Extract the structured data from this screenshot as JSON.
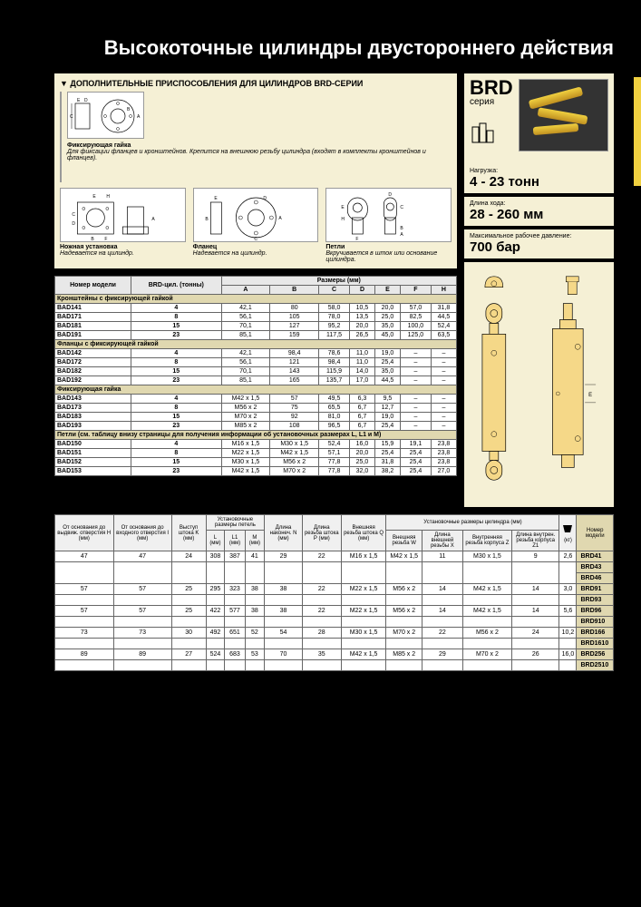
{
  "title": "Высокоточные цилиндры двустороннего действия",
  "accessories": {
    "header": "▼  ДОПОЛНИТЕЛЬНЫЕ ПРИСПОСОБЛЕНИЯ ДЛЯ ЦИЛИНДРОВ BRD-СЕРИИ",
    "nut": {
      "title": "Фиксирующая гайка",
      "desc": "Для фиксации фланцев и кронштейнов. Крепится на внешнюю резьбу цилиндра (входят в комплекты кронштейнов и фланцев)."
    },
    "foot": {
      "title": "Ножная установка",
      "desc": "Надевается на цилиндр."
    },
    "flange": {
      "title": "Фланец",
      "desc": "Надевается на цилиндр."
    },
    "loop": {
      "title": "Петли",
      "desc": "Вкручивается в шток или основание цилиндра."
    }
  },
  "series": {
    "name": "BRD",
    "sub": "серия"
  },
  "specs": {
    "load": {
      "label": "Нагрузка:",
      "value": "4 - 23 тонн"
    },
    "stroke": {
      "label": "Длина хода:",
      "value": "28 - 260 мм"
    },
    "pressure": {
      "label": "Максимальное рабочее давление:",
      "value": "700 бар"
    }
  },
  "table1": {
    "headers": {
      "model": "Номер модели",
      "cyl": "BRD-цил. (тонны)",
      "dims": "Размеры (мм)",
      "cols": [
        "A",
        "B",
        "C",
        "D",
        "E",
        "F",
        "H"
      ]
    },
    "sections": [
      {
        "title": "Кронштейны с фиксирующей гайкой",
        "rows": [
          [
            "BAD141",
            "4",
            "42,1",
            "80",
            "58,0",
            "10,5",
            "20,0",
            "57,0",
            "31,8"
          ],
          [
            "BAD171",
            "8",
            "56,1",
            "105",
            "78,0",
            "13,5",
            "25,0",
            "82,5",
            "44,5"
          ],
          [
            "BAD181",
            "15",
            "70,1",
            "127",
            "95,2",
            "20,0",
            "35,0",
            "100,0",
            "52,4"
          ],
          [
            "BAD191",
            "23",
            "85,1",
            "159",
            "117,5",
            "26,5",
            "45,0",
            "125,0",
            "63,5"
          ]
        ]
      },
      {
        "title": "Фланцы с фиксирующей гайкой",
        "rows": [
          [
            "BAD142",
            "4",
            "42,1",
            "98,4",
            "78,6",
            "11,0",
            "19,0",
            "–",
            "–"
          ],
          [
            "BAD172",
            "8",
            "56,1",
            "121",
            "98,4",
            "11,0",
            "25,4",
            "–",
            "–"
          ],
          [
            "BAD182",
            "15",
            "70,1",
            "143",
            "115,9",
            "14,0",
            "35,0",
            "–",
            "–"
          ],
          [
            "BAD192",
            "23",
            "85,1",
            "165",
            "135,7",
            "17,0",
            "44,5",
            "–",
            "–"
          ]
        ]
      },
      {
        "title": "Фиксирующая гайка",
        "rows": [
          [
            "BAD143",
            "4",
            "M42 x 1,5",
            "57",
            "49,5",
            "6,3",
            "9,5",
            "–",
            "–"
          ],
          [
            "BAD173",
            "8",
            "M56 x 2",
            "75",
            "65,5",
            "6,7",
            "12,7",
            "–",
            "–"
          ],
          [
            "BAD183",
            "15",
            "M70 x 2",
            "92",
            "81,0",
            "6,7",
            "19,0",
            "–",
            "–"
          ],
          [
            "BAD193",
            "23",
            "M85 x 2",
            "108",
            "96,5",
            "6,7",
            "25,4",
            "–",
            "–"
          ]
        ]
      },
      {
        "title": "Петли (см. таблицу внизу страницы для получения информации об установочных размерах L, L1 и M)",
        "rows": [
          [
            "BAD150",
            "4",
            "M16 x 1,5",
            "M30 x 1,5",
            "52,4",
            "16,0",
            "15,9",
            "19,1",
            "23,8"
          ],
          [
            "BAD151",
            "8",
            "M22 x 1,5",
            "M42 x 1,5",
            "57,1",
            "20,0",
            "25,4",
            "25,4",
            "23,8"
          ],
          [
            "BAD152",
            "15",
            "M30 x 1,5",
            "M56 x 2",
            "77,8",
            "25,0",
            "31,8",
            "25,4",
            "23,8"
          ],
          [
            "BAD153",
            "23",
            "M42 x 1,5",
            "M70 x 2",
            "77,8",
            "32,0",
            "38,2",
            "25,4",
            "27,0"
          ]
        ]
      }
    ]
  },
  "table2": {
    "headers": [
      "От основания до выдвиж. отверстия H (мм)",
      "От основания до входного отверстия I (мм)",
      "Выступ штока K (мм)",
      "Установочные размеры петель",
      "Длина наконеч. N (мм)",
      "Длина резьба штока P (мм)",
      "Внешняя резьба штока Q (мм)",
      "Установочные размеры цилиндра (мм)",
      "",
      "Номер модели"
    ],
    "sub1": [
      "L (мм)",
      "L1 (мм)",
      "M (мм)"
    ],
    "sub2": [
      "Внешняя резьба W",
      "Длина внешней резьбы X",
      "Внутренняя резьба корпуса Z",
      "Длина внутрен. резьба корпуса Z1"
    ],
    "weight": "(кг)",
    "groups": [
      {
        "data": [
          "47",
          "47",
          "24",
          "308",
          "387",
          "41",
          "29",
          "22",
          "M16 x 1,5",
          "M42 x 1,5",
          "11",
          "M30 x 1,5",
          "9",
          "2,6"
        ],
        "models": [
          "BRD41",
          "BRD43",
          "BRD46"
        ]
      },
      {
        "data": [
          "57",
          "57",
          "25",
          "295",
          "323",
          "38",
          "38",
          "22",
          "M22 x 1,5",
          "M56 x 2",
          "14",
          "M42 x 1,5",
          "14",
          "3,0"
        ],
        "models": [
          "BRD91",
          "BRD93"
        ]
      },
      {
        "data": [
          "57",
          "57",
          "25",
          "422",
          "577",
          "38",
          "38",
          "22",
          "M22 x 1,5",
          "M56 x 2",
          "14",
          "M42 x 1,5",
          "14",
          "5,6"
        ],
        "models": [
          "BRD96",
          "BRD910"
        ]
      },
      {
        "data": [
          "73",
          "73",
          "30",
          "492",
          "651",
          "52",
          "54",
          "28",
          "M30 x 1,5",
          "M70 x 2",
          "22",
          "M56 x 2",
          "24",
          "10,2"
        ],
        "models": [
          "BRD166",
          "BRD1610"
        ]
      },
      {
        "data": [
          "89",
          "89",
          "27",
          "524",
          "683",
          "53",
          "70",
          "35",
          "M42 x 1,5",
          "M85 x 2",
          "29",
          "M70 x 2",
          "26",
          "16,0"
        ],
        "models": [
          "BRD256",
          "BRD2510"
        ]
      }
    ]
  },
  "colors": {
    "beige": "#f5f0d5",
    "accent": "#f0d040"
  }
}
